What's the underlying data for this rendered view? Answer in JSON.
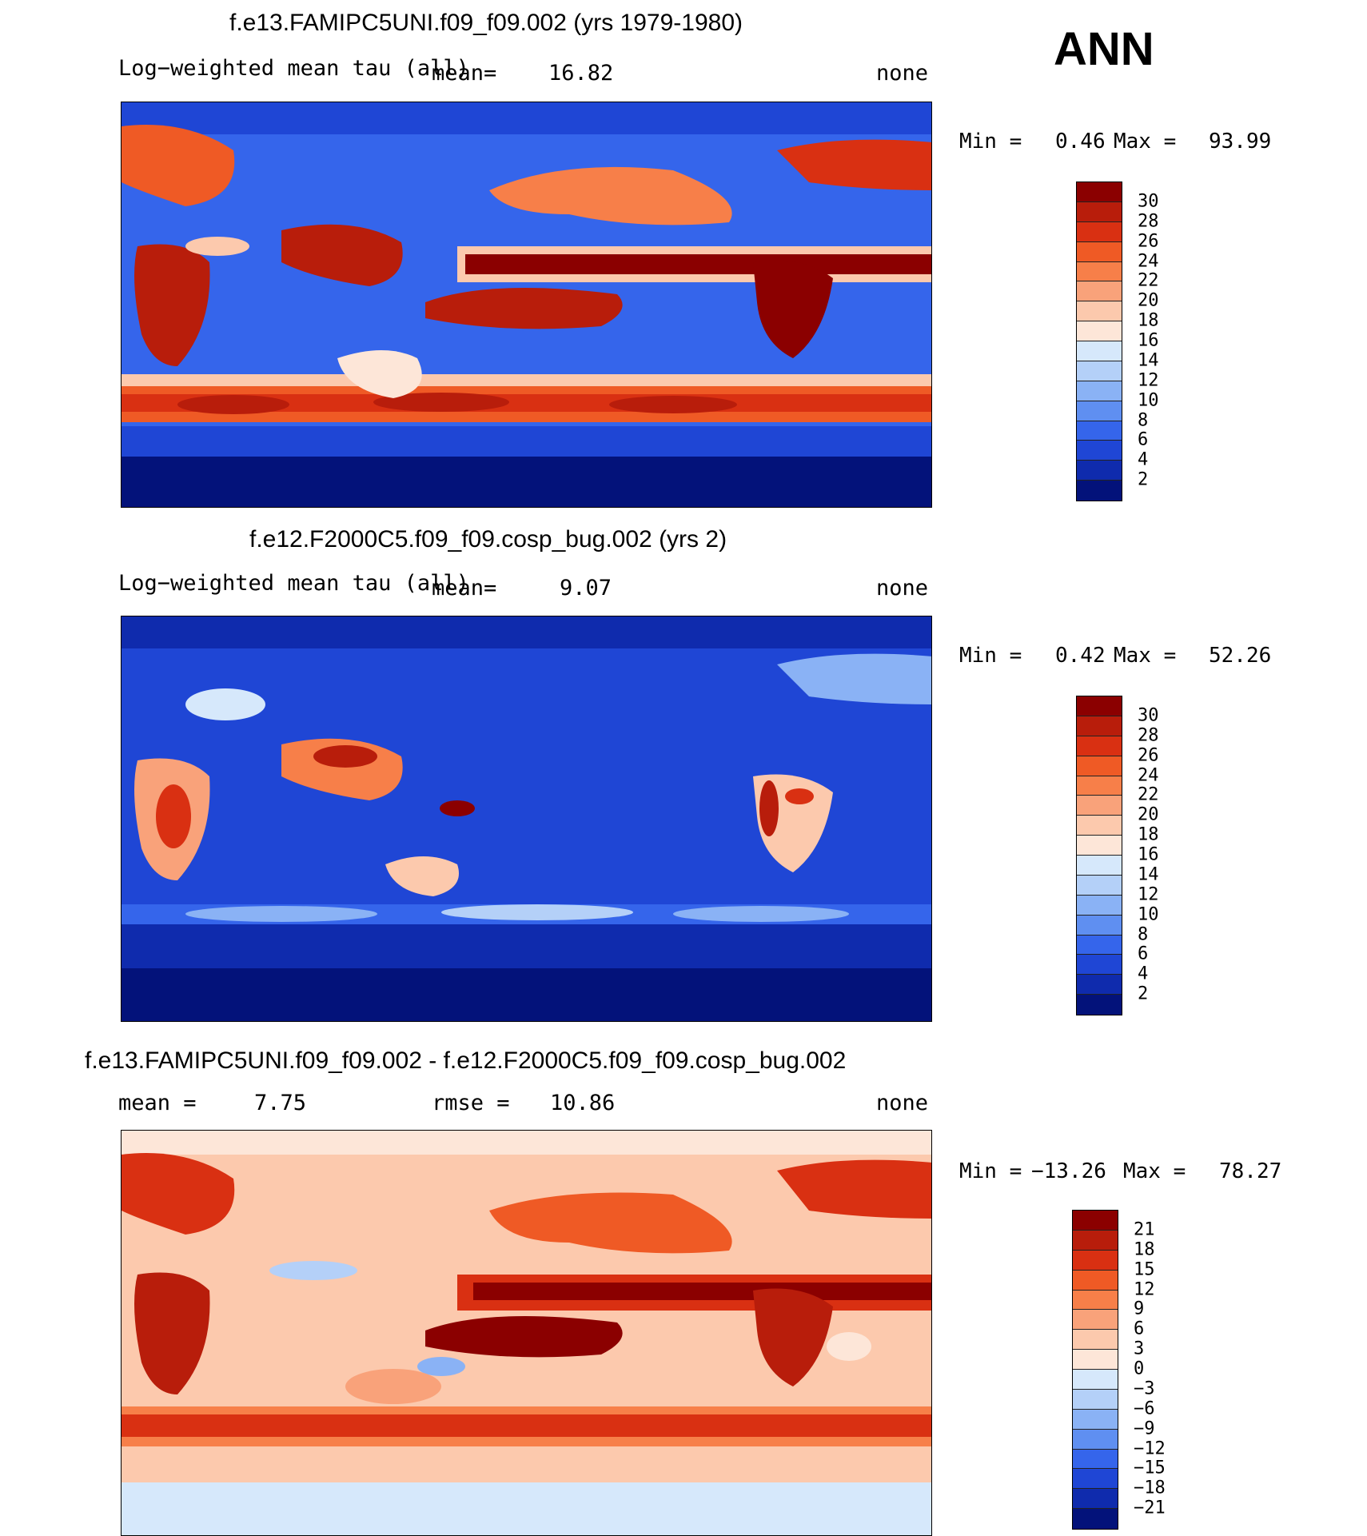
{
  "season": "ANN",
  "chart_data": [
    {
      "type": "heatmap",
      "title": "f.e13.FAMIPC5UNI.f09_f09.002 (yrs 1979-1980)",
      "variable_label": "Log−weighted mean tau (all)",
      "mean_label": "mean=",
      "mean_value": "16.82",
      "units": "none",
      "min_label": "Min =",
      "min_value": "0.46",
      "max_label": "Max =",
      "max_value": "93.99",
      "colorbar_ticks": [
        "30",
        "28",
        "26",
        "24",
        "22",
        "20",
        "18",
        "16",
        "14",
        "12",
        "10",
        "8",
        "6",
        "4",
        "2"
      ],
      "colorbar_colors": [
        "#8b0000",
        "#b81d0b",
        "#d93012",
        "#ef5a25",
        "#f77f49",
        "#f9a27a",
        "#fcc9ad",
        "#fde6d8",
        "#d6e8fb",
        "#b4d0f8",
        "#8ab2f5",
        "#5f8ff1",
        "#3565eb",
        "#1f46d5",
        "#0f2bad",
        "#03127a"
      ]
    },
    {
      "type": "heatmap",
      "title": "f.e12.F2000C5.f09_f09.cosp_bug.002 (yrs 2)",
      "variable_label": "Log−weighted mean tau (all)",
      "mean_label": "mean=",
      "mean_value": "9.07",
      "units": "none",
      "min_label": "Min =",
      "min_value": "0.42",
      "max_label": "Max =",
      "max_value": "52.26",
      "colorbar_ticks": [
        "30",
        "28",
        "26",
        "24",
        "22",
        "20",
        "18",
        "16",
        "14",
        "12",
        "10",
        "8",
        "6",
        "4",
        "2"
      ],
      "colorbar_colors": [
        "#8b0000",
        "#b81d0b",
        "#d93012",
        "#ef5a25",
        "#f77f49",
        "#f9a27a",
        "#fcc9ad",
        "#fde6d8",
        "#d6e8fb",
        "#b4d0f8",
        "#8ab2f5",
        "#5f8ff1",
        "#3565eb",
        "#1f46d5",
        "#0f2bad",
        "#03127a"
      ]
    },
    {
      "type": "heatmap",
      "title": "f.e13.FAMIPC5UNI.f09_f09.002 - f.e12.F2000C5.f09_f09.cosp_bug.002",
      "mean_label": "mean =",
      "mean_value": "7.75",
      "rmse_label": "rmse =",
      "rmse_value": "10.86",
      "units": "none",
      "min_label": "Min =",
      "min_value": "−13.26",
      "max_label": "Max =",
      "max_value": "78.27",
      "colorbar_ticks": [
        "21",
        "18",
        "15",
        "12",
        "9",
        "6",
        "3",
        "0",
        "−3",
        "−6",
        "−9",
        "−12",
        "−15",
        "−18",
        "−21"
      ],
      "colorbar_colors": [
        "#8b0000",
        "#b81d0b",
        "#d93012",
        "#ef5a25",
        "#f77f49",
        "#f9a27a",
        "#fcc9ad",
        "#fde6d8",
        "#d6e8fb",
        "#b4d0f8",
        "#8ab2f5",
        "#5f8ff1",
        "#3565eb",
        "#1f46d5",
        "#0f2bad",
        "#03127a"
      ]
    }
  ]
}
